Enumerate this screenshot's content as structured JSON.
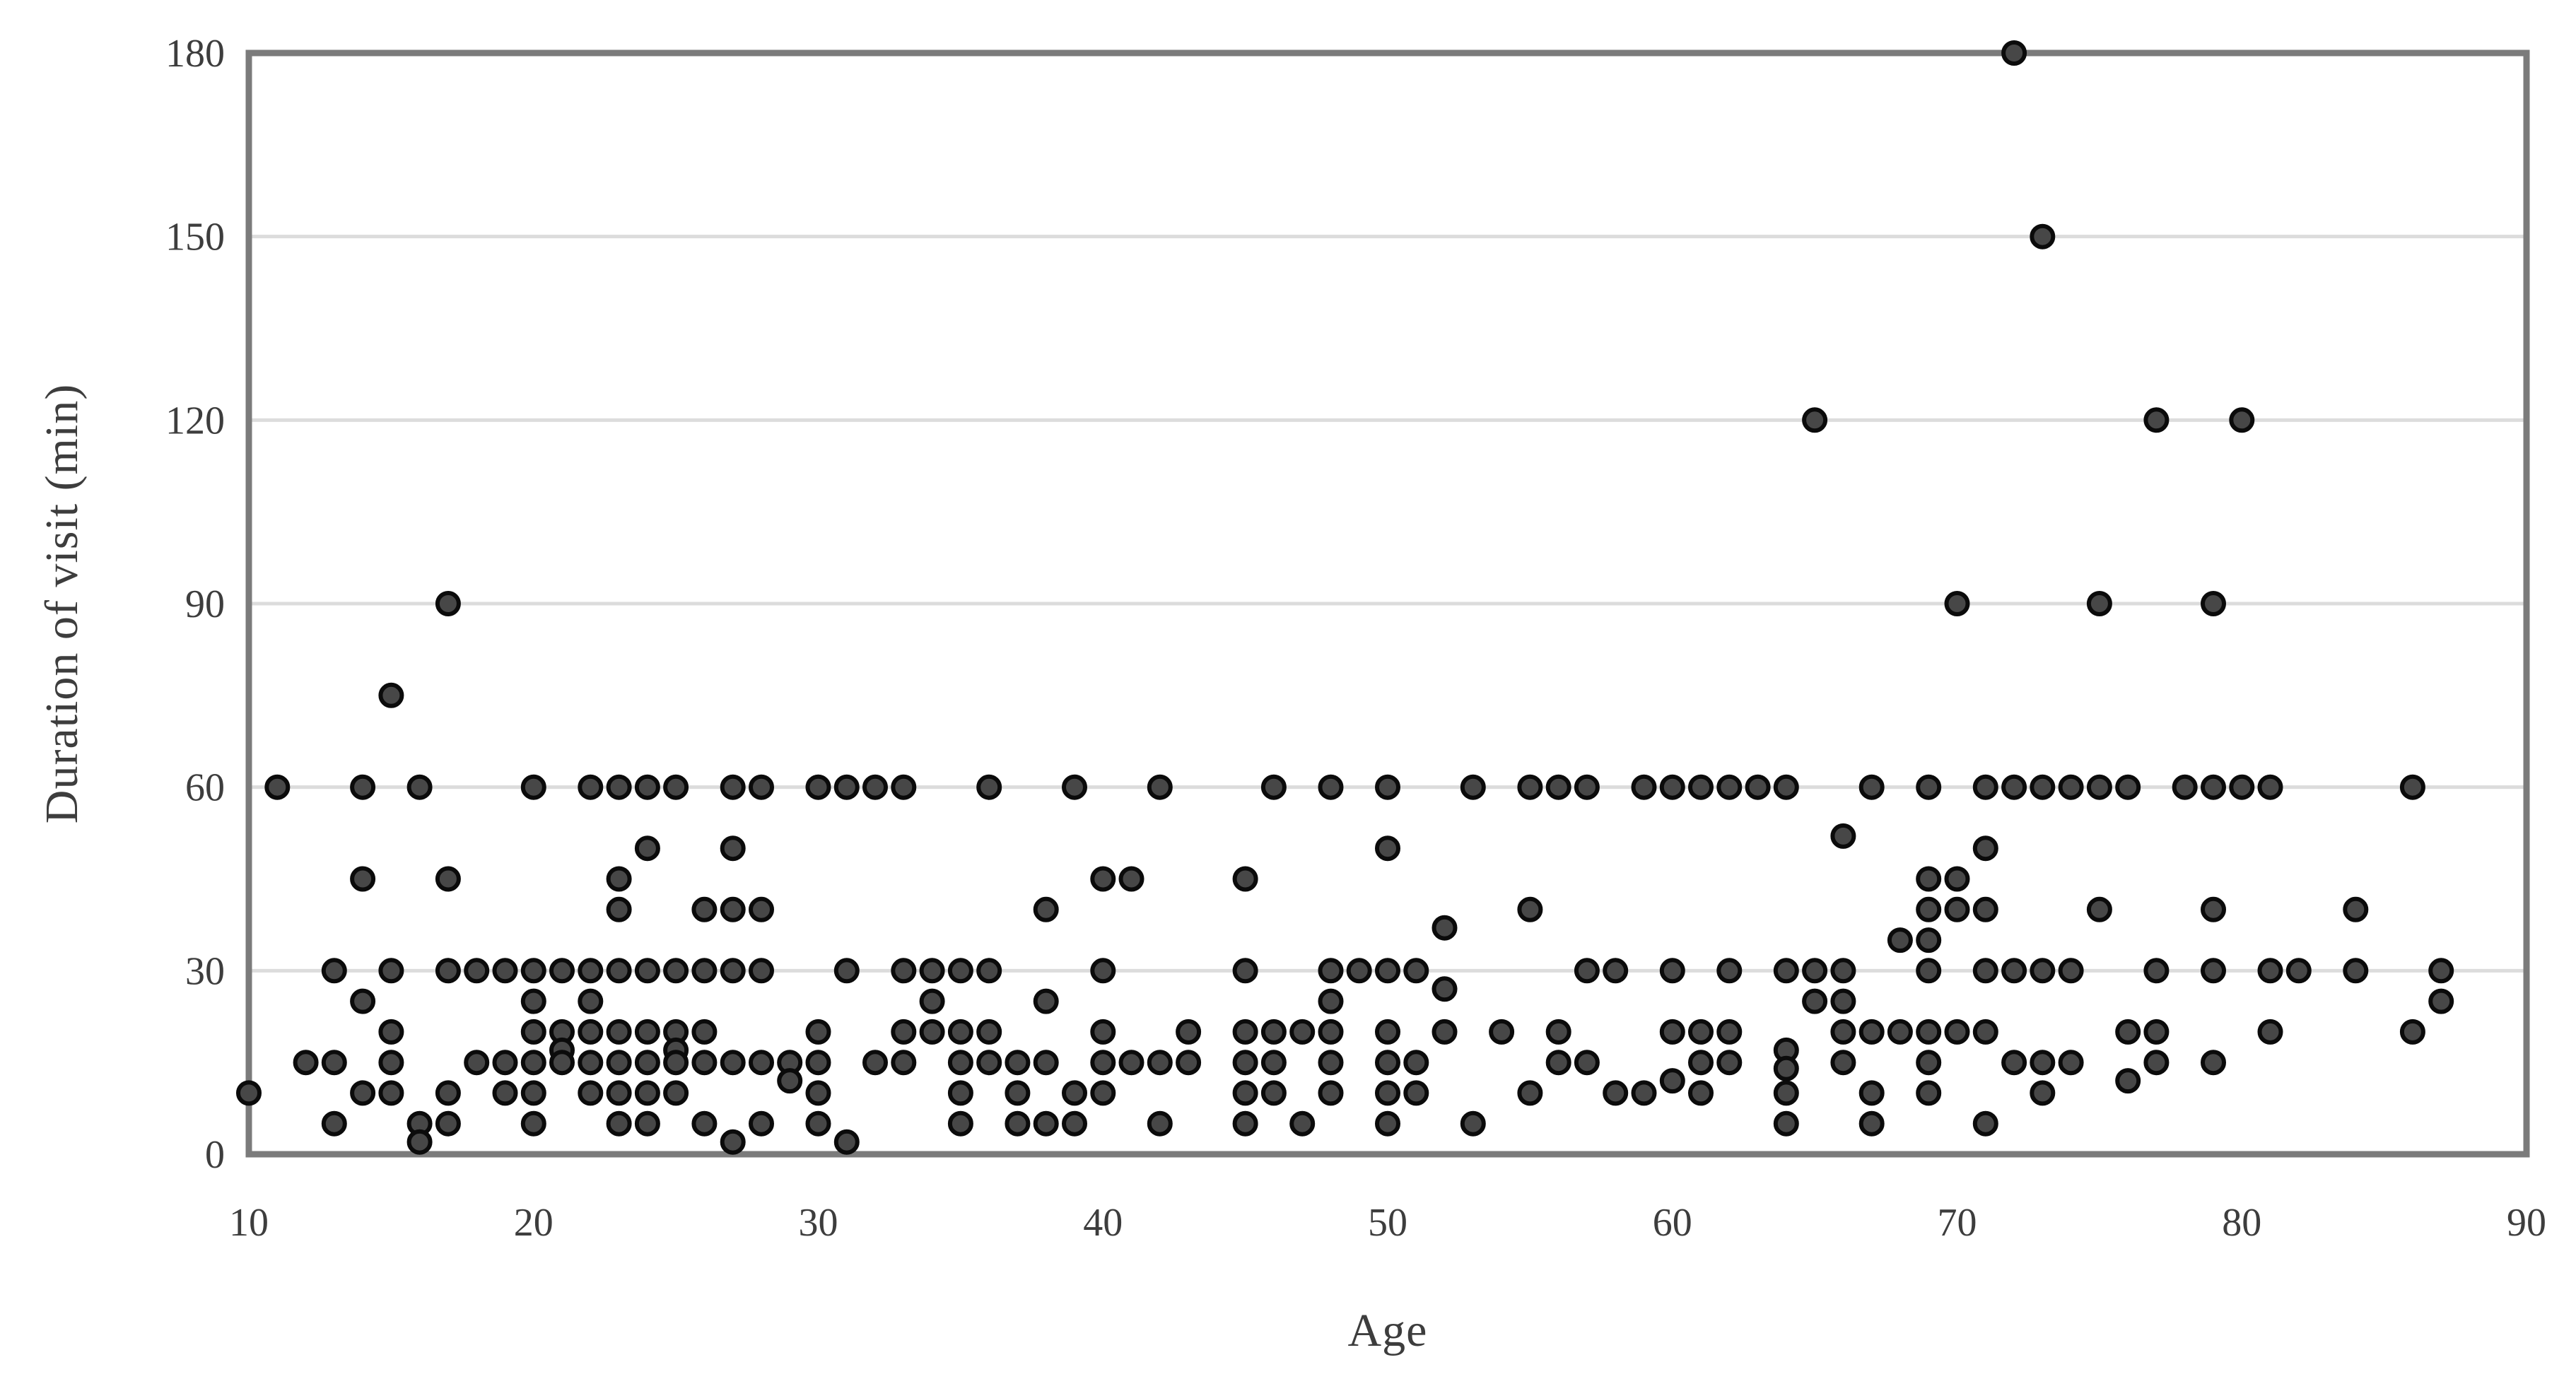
{
  "chart_data": {
    "type": "scatter",
    "title": "",
    "xlabel": "Age",
    "ylabel": "Duration of visit (min)",
    "xlim": [
      10,
      90
    ],
    "ylim": [
      0,
      180
    ],
    "x_ticks": [
      10,
      20,
      30,
      40,
      50,
      60,
      70,
      80,
      90
    ],
    "y_ticks": [
      0,
      30,
      60,
      90,
      120,
      150,
      180
    ],
    "grid": "horizontal-only",
    "legend": "none",
    "colors": {
      "background": "#ffffff",
      "frame": "#7b7b7b",
      "gridline": "#dcdcdc",
      "marker_fill": "#474747",
      "marker_stroke": "#0b0b0b",
      "tick_label": "#3d3d3d",
      "axis_title": "#3d3d3d"
    },
    "marker": {
      "shape": "circle",
      "radius_px": 15,
      "stroke_width_px": 6
    },
    "points": [
      [
        10,
        10
      ],
      [
        11,
        60
      ],
      [
        12,
        15
      ],
      [
        13,
        30
      ],
      [
        13,
        15
      ],
      [
        13,
        5
      ],
      [
        14,
        60
      ],
      [
        14,
        45
      ],
      [
        14,
        25
      ],
      [
        14,
        10
      ],
      [
        15,
        75
      ],
      [
        15,
        30
      ],
      [
        15,
        20
      ],
      [
        15,
        15
      ],
      [
        15,
        10
      ],
      [
        16,
        60
      ],
      [
        16,
        5
      ],
      [
        16,
        2
      ],
      [
        17,
        90
      ],
      [
        17,
        45
      ],
      [
        17,
        30
      ],
      [
        17,
        10
      ],
      [
        17,
        5
      ],
      [
        18,
        30
      ],
      [
        18,
        15
      ],
      [
        19,
        30
      ],
      [
        19,
        15
      ],
      [
        19,
        10
      ],
      [
        20,
        60
      ],
      [
        20,
        30
      ],
      [
        20,
        25
      ],
      [
        20,
        20
      ],
      [
        20,
        15
      ],
      [
        20,
        10
      ],
      [
        20,
        5
      ],
      [
        21,
        30
      ],
      [
        21,
        20
      ],
      [
        21,
        17
      ],
      [
        21,
        15
      ],
      [
        22,
        60
      ],
      [
        22,
        30
      ],
      [
        22,
        25
      ],
      [
        22,
        20
      ],
      [
        22,
        15
      ],
      [
        22,
        10
      ],
      [
        23,
        60
      ],
      [
        23,
        45
      ],
      [
        23,
        40
      ],
      [
        23,
        30
      ],
      [
        23,
        20
      ],
      [
        23,
        15
      ],
      [
        23,
        10
      ],
      [
        23,
        5
      ],
      [
        24,
        60
      ],
      [
        24,
        50
      ],
      [
        24,
        30
      ],
      [
        24,
        20
      ],
      [
        24,
        15
      ],
      [
        24,
        10
      ],
      [
        24,
        5
      ],
      [
        25,
        60
      ],
      [
        25,
        30
      ],
      [
        25,
        20
      ],
      [
        25,
        17
      ],
      [
        25,
        15
      ],
      [
        25,
        10
      ],
      [
        26,
        40
      ],
      [
        26,
        30
      ],
      [
        26,
        20
      ],
      [
        26,
        15
      ],
      [
        26,
        5
      ],
      [
        27,
        60
      ],
      [
        27,
        50
      ],
      [
        27,
        40
      ],
      [
        27,
        30
      ],
      [
        27,
        15
      ],
      [
        27,
        2
      ],
      [
        28,
        60
      ],
      [
        28,
        40
      ],
      [
        28,
        30
      ],
      [
        28,
        15
      ],
      [
        28,
        5
      ],
      [
        29,
        15
      ],
      [
        29,
        12
      ],
      [
        30,
        60
      ],
      [
        30,
        20
      ],
      [
        30,
        15
      ],
      [
        30,
        10
      ],
      [
        30,
        5
      ],
      [
        31,
        60
      ],
      [
        31,
        30
      ],
      [
        31,
        2
      ],
      [
        32,
        60
      ],
      [
        32,
        15
      ],
      [
        33,
        60
      ],
      [
        33,
        30
      ],
      [
        33,
        20
      ],
      [
        33,
        15
      ],
      [
        34,
        30
      ],
      [
        34,
        25
      ],
      [
        34,
        20
      ],
      [
        35,
        30
      ],
      [
        35,
        20
      ],
      [
        35,
        15
      ],
      [
        35,
        10
      ],
      [
        35,
        5
      ],
      [
        36,
        60
      ],
      [
        36,
        30
      ],
      [
        36,
        20
      ],
      [
        36,
        15
      ],
      [
        37,
        15
      ],
      [
        37,
        10
      ],
      [
        37,
        5
      ],
      [
        38,
        40
      ],
      [
        38,
        25
      ],
      [
        38,
        15
      ],
      [
        38,
        5
      ],
      [
        39,
        60
      ],
      [
        39,
        10
      ],
      [
        39,
        5
      ],
      [
        40,
        45
      ],
      [
        40,
        30
      ],
      [
        40,
        20
      ],
      [
        40,
        15
      ],
      [
        40,
        10
      ],
      [
        41,
        45
      ],
      [
        41,
        15
      ],
      [
        42,
        60
      ],
      [
        42,
        15
      ],
      [
        42,
        5
      ],
      [
        43,
        20
      ],
      [
        43,
        15
      ],
      [
        45,
        45
      ],
      [
        45,
        30
      ],
      [
        45,
        20
      ],
      [
        45,
        15
      ],
      [
        45,
        10
      ],
      [
        45,
        5
      ],
      [
        46,
        60
      ],
      [
        46,
        20
      ],
      [
        46,
        15
      ],
      [
        46,
        10
      ],
      [
        47,
        20
      ],
      [
        47,
        5
      ],
      [
        48,
        60
      ],
      [
        48,
        30
      ],
      [
        48,
        25
      ],
      [
        48,
        20
      ],
      [
        48,
        15
      ],
      [
        48,
        10
      ],
      [
        49,
        30
      ],
      [
        50,
        60
      ],
      [
        50,
        50
      ],
      [
        50,
        30
      ],
      [
        50,
        20
      ],
      [
        50,
        15
      ],
      [
        50,
        10
      ],
      [
        50,
        5
      ],
      [
        51,
        30
      ],
      [
        51,
        15
      ],
      [
        51,
        10
      ],
      [
        52,
        37
      ],
      [
        52,
        27
      ],
      [
        52,
        20
      ],
      [
        53,
        60
      ],
      [
        53,
        5
      ],
      [
        54,
        20
      ],
      [
        55,
        60
      ],
      [
        55,
        40
      ],
      [
        55,
        10
      ],
      [
        56,
        60
      ],
      [
        56,
        20
      ],
      [
        56,
        15
      ],
      [
        57,
        60
      ],
      [
        57,
        30
      ],
      [
        57,
        15
      ],
      [
        58,
        30
      ],
      [
        58,
        10
      ],
      [
        59,
        60
      ],
      [
        59,
        10
      ],
      [
        60,
        60
      ],
      [
        60,
        30
      ],
      [
        60,
        20
      ],
      [
        60,
        12
      ],
      [
        61,
        60
      ],
      [
        61,
        20
      ],
      [
        61,
        15
      ],
      [
        61,
        10
      ],
      [
        62,
        60
      ],
      [
        62,
        30
      ],
      [
        62,
        20
      ],
      [
        62,
        15
      ],
      [
        63,
        60
      ],
      [
        64,
        60
      ],
      [
        64,
        30
      ],
      [
        64,
        17
      ],
      [
        64,
        14
      ],
      [
        64,
        10
      ],
      [
        64,
        5
      ],
      [
        65,
        120
      ],
      [
        65,
        30
      ],
      [
        65,
        25
      ],
      [
        66,
        52
      ],
      [
        66,
        30
      ],
      [
        66,
        25
      ],
      [
        66,
        20
      ],
      [
        66,
        15
      ],
      [
        67,
        60
      ],
      [
        67,
        20
      ],
      [
        67,
        10
      ],
      [
        67,
        5
      ],
      [
        68,
        35
      ],
      [
        68,
        20
      ],
      [
        69,
        60
      ],
      [
        69,
        45
      ],
      [
        69,
        40
      ],
      [
        69,
        35
      ],
      [
        69,
        30
      ],
      [
        69,
        20
      ],
      [
        69,
        15
      ],
      [
        69,
        10
      ],
      [
        70,
        90
      ],
      [
        70,
        45
      ],
      [
        70,
        40
      ],
      [
        70,
        20
      ],
      [
        71,
        60
      ],
      [
        71,
        50
      ],
      [
        71,
        40
      ],
      [
        71,
        30
      ],
      [
        71,
        20
      ],
      [
        71,
        5
      ],
      [
        72,
        180
      ],
      [
        72,
        60
      ],
      [
        72,
        30
      ],
      [
        72,
        15
      ],
      [
        73,
        150
      ],
      [
        73,
        60
      ],
      [
        73,
        30
      ],
      [
        73,
        15
      ],
      [
        73,
        10
      ],
      [
        74,
        60
      ],
      [
        74,
        30
      ],
      [
        74,
        15
      ],
      [
        75,
        90
      ],
      [
        75,
        60
      ],
      [
        75,
        40
      ],
      [
        76,
        60
      ],
      [
        76,
        20
      ],
      [
        76,
        12
      ],
      [
        77,
        120
      ],
      [
        77,
        30
      ],
      [
        77,
        20
      ],
      [
        77,
        15
      ],
      [
        78,
        60
      ],
      [
        79,
        90
      ],
      [
        79,
        60
      ],
      [
        79,
        40
      ],
      [
        79,
        30
      ],
      [
        79,
        15
      ],
      [
        80,
        120
      ],
      [
        80,
        60
      ],
      [
        81,
        60
      ],
      [
        81,
        30
      ],
      [
        81,
        20
      ],
      [
        82,
        30
      ],
      [
        84,
        40
      ],
      [
        84,
        30
      ],
      [
        86,
        60
      ],
      [
        86,
        20
      ],
      [
        87,
        30
      ],
      [
        87,
        25
      ]
    ]
  }
}
